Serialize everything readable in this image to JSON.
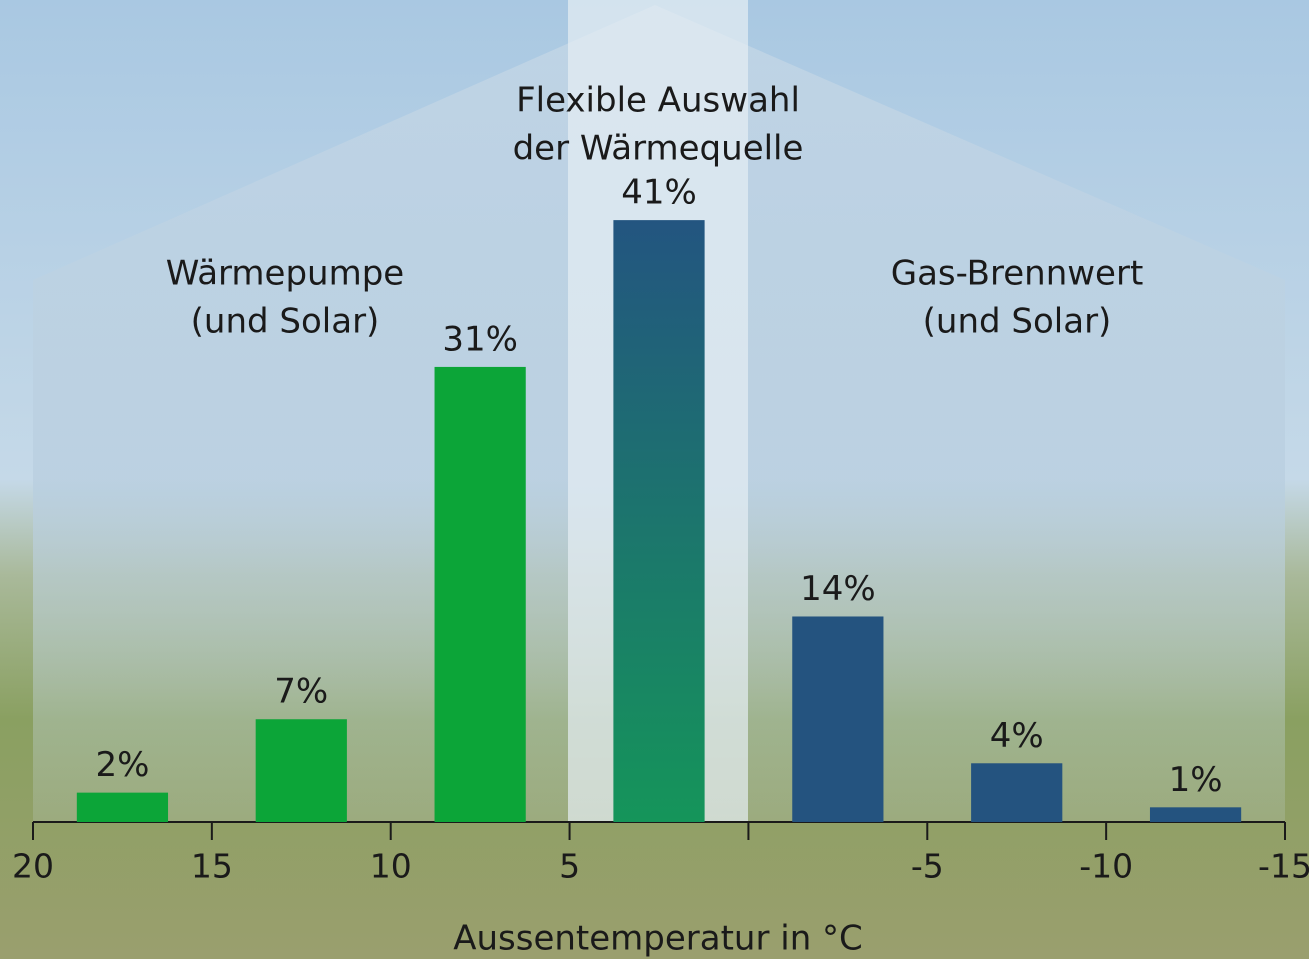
{
  "chart_data": {
    "type": "histogram",
    "bins": [
      20,
      15,
      10,
      5,
      0,
      -5,
      -10,
      -15
    ],
    "values": [
      2,
      7,
      31,
      41,
      14,
      4,
      1
    ],
    "value_labels": [
      "2%",
      "7%",
      "31%",
      "41%",
      "14%",
      "4%",
      "1%"
    ],
    "colors": [
      "#0ca538",
      "#0ca538",
      "#0ca538",
      {
        "top": "#235580",
        "bottom": "#15955a"
      },
      "#24537f",
      "#24537f",
      "#24537f"
    ],
    "xlim": [
      20,
      -15
    ],
    "xticks": [
      20,
      15,
      10,
      5,
      -5,
      -10,
      -15
    ],
    "xlabel": "Aussentemperatur in °C",
    "annotations": [
      {
        "lines": [
          "Wärmepumpe",
          "(und Solar)"
        ]
      },
      {
        "lines": [
          "Flexible Auswahl",
          "der Wärmequelle"
        ]
      },
      {
        "lines": [
          "Gas-Brennwert",
          "(und Solar)"
        ]
      }
    ]
  }
}
